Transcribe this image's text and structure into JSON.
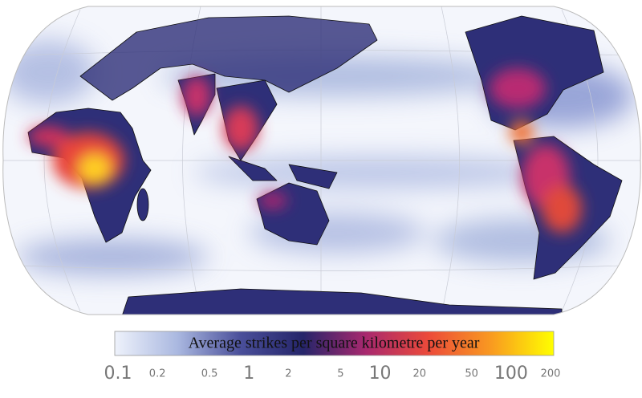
{
  "colorbar": {
    "title": "Average strikes per square kilometre per year",
    "scale": "log",
    "lim": [
      0.1,
      200
    ],
    "ticks": [
      0.1,
      0.2,
      0.5,
      1,
      2,
      5,
      10,
      20,
      50,
      100,
      200
    ],
    "colors": [
      "#eef2fb",
      "#aab8e0",
      "#4a4f9a",
      "#25256a",
      "#a8286e",
      "#ec4a3a",
      "#f99a20",
      "#ffff00"
    ]
  }
}
